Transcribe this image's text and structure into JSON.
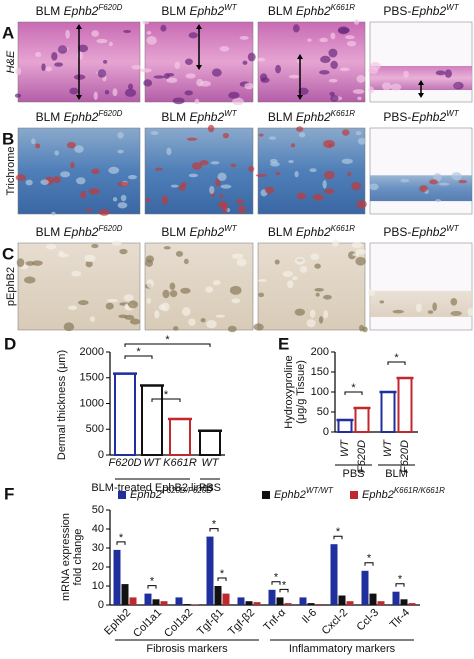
{
  "panels": [
    {
      "letter": "A",
      "row_label": "H&E",
      "headings": [
        {
          "prefix": "BLM ",
          "gene": "Ephb2",
          "allele": "F620D"
        },
        {
          "prefix": "BLM ",
          "gene": "Ephb2",
          "allele": "WT"
        },
        {
          "prefix": "BLM ",
          "gene": "Ephb2",
          "allele": "K661R"
        },
        {
          "prefix": "PBS-",
          "gene": "Ephb2",
          "allele": "WT"
        }
      ]
    },
    {
      "letter": "B",
      "row_label": "Trichrome",
      "headings": [
        {
          "prefix": "BLM ",
          "gene": "Ephb2",
          "allele": "F620D"
        },
        {
          "prefix": "BLM ",
          "gene": "Ephb2",
          "allele": "WT"
        },
        {
          "prefix": "BLM ",
          "gene": "Ephb2",
          "allele": "K661R"
        },
        {
          "prefix": "PBS-",
          "gene": "Ephb2",
          "allele": "WT"
        }
      ]
    },
    {
      "letter": "C",
      "row_label": "pEphB2",
      "headings": [
        {
          "prefix": "BLM ",
          "gene": "Ephb2",
          "allele": "F620D"
        },
        {
          "prefix": "BLM ",
          "gene": "Ephb2",
          "allele": "WT"
        },
        {
          "prefix": "BLM ",
          "gene": "Ephb2",
          "allele": "K661R"
        },
        {
          "prefix": "PBS-",
          "gene": "Ephb2",
          "allele": "WT"
        }
      ]
    }
  ],
  "chart_data": [
    {
      "type": "bar",
      "letter": "D",
      "ylabel": [
        "Dermal thickness (μm)"
      ],
      "categories": [
        "F620D",
        "WT",
        "K661R",
        "WT"
      ],
      "values": [
        1580,
        1350,
        700,
        470
      ],
      "colors": [
        "#1f2f9e",
        "#111111",
        "#c0282e",
        "#111111"
      ],
      "ylim": [
        0,
        2000
      ],
      "yticks": [
        0,
        500,
        1000,
        1500,
        2000
      ],
      "groups": [
        {
          "label": "BLM-treated EphB2 lines",
          "from": 0,
          "to": 2
        },
        {
          "label": "PBS",
          "from": 3,
          "to": 3
        }
      ],
      "brackets": [
        {
          "from": 0,
          "to": 3,
          "label": "*"
        },
        {
          "from": 0,
          "to": 1,
          "label": "*"
        },
        {
          "from": 1,
          "to": 2,
          "label": "*"
        }
      ]
    },
    {
      "type": "bar",
      "letter": "E",
      "ylabel": [
        "Hydroxyproline",
        "(μg/g Tissue)"
      ],
      "categories": [
        "WT",
        "F620D",
        "WT",
        "F620D"
      ],
      "values": [
        30,
        60,
        100,
        135
      ],
      "colors": [
        "#1f2f9e",
        "#c0282e",
        "#1f2f9e",
        "#c0282e"
      ],
      "ylim": [
        0,
        200
      ],
      "yticks": [
        0,
        50,
        100,
        150,
        200
      ],
      "groups": [
        {
          "label": "PBS",
          "from": 0,
          "to": 1
        },
        {
          "label": "BLM",
          "from": 2,
          "to": 3
        }
      ],
      "brackets": [
        {
          "from": 0,
          "to": 1,
          "label": "*"
        },
        {
          "from": 2,
          "to": 3,
          "label": "*"
        }
      ]
    },
    {
      "type": "grouped_bar",
      "letter": "F",
      "ylabel": [
        "mRNA expression",
        "fold change"
      ],
      "categories": [
        "Ephb2",
        "Col1a1",
        "Col1a2",
        "Tgf-β1",
        "Tgf-β2",
        "Tnf-α",
        "Il-6",
        "Cxcl-2",
        "Ccl-3",
        "Tlr-4"
      ],
      "series": [
        {
          "name": "Ephb2",
          "superscript": "F620D/F620D",
          "color": "#1f2f9e",
          "values": [
            29,
            6,
            4,
            36,
            4,
            8,
            4,
            32,
            18,
            7
          ]
        },
        {
          "name": "Ephb2",
          "superscript": "WT/WT",
          "color": "#111111",
          "values": [
            11,
            3,
            0.5,
            10,
            2,
            4,
            1,
            5,
            6,
            3
          ]
        },
        {
          "name": "Ephb2",
          "superscript": "K661R/K661R",
          "color": "#c0282e",
          "values": [
            4,
            2,
            0.3,
            6,
            1.5,
            1,
            0.5,
            2,
            2,
            1
          ]
        }
      ],
      "ylim": [
        0,
        50
      ],
      "yticks": [
        0,
        10,
        20,
        30,
        40,
        50
      ],
      "groups": [
        {
          "label": "Fibrosis markers",
          "from": 0,
          "to": 4
        },
        {
          "label": "Inflammatory markers",
          "from": 5,
          "to": 9
        }
      ],
      "brackets": [
        {
          "category": 0,
          "from": 0,
          "to": 1,
          "label": "*"
        },
        {
          "category": 1,
          "from": 0,
          "to": 1,
          "label": "*"
        },
        {
          "category": 3,
          "from": 0,
          "to": 1,
          "label": "*"
        },
        {
          "category": 3,
          "from": 1,
          "to": 2,
          "label": "*"
        },
        {
          "category": 5,
          "from": 0,
          "to": 1,
          "label": "*"
        },
        {
          "category": 5,
          "from": 1,
          "to": 2,
          "label": "*"
        },
        {
          "category": 7,
          "from": 0,
          "to": 1,
          "label": "*"
        },
        {
          "category": 8,
          "from": 0,
          "to": 1,
          "label": "*"
        },
        {
          "category": 9,
          "from": 0,
          "to": 1,
          "label": "*"
        }
      ]
    }
  ]
}
